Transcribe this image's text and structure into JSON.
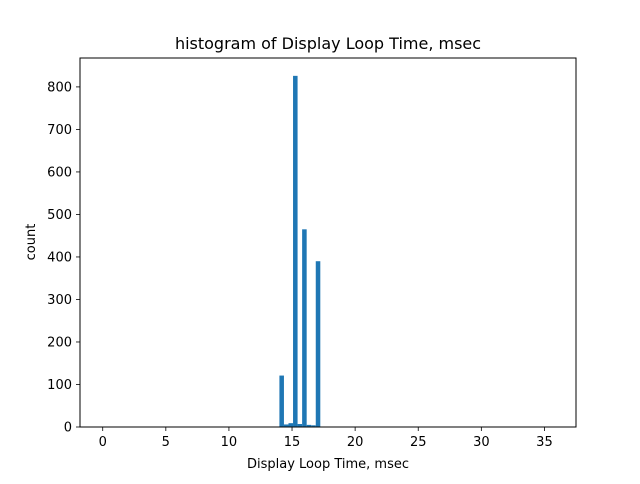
{
  "chart_data": {
    "type": "bar",
    "title": "histogram of Display Loop Time, msec",
    "xlabel": "Display Loop Time, msec",
    "ylabel": "count",
    "xlim": [
      -1.8,
      37.5
    ],
    "ylim": [
      0,
      868
    ],
    "xticks": [
      0,
      5,
      10,
      15,
      20,
      25,
      30,
      35
    ],
    "yticks": [
      0,
      100,
      200,
      300,
      400,
      500,
      600,
      700,
      800
    ],
    "grid": false,
    "bin_width": 0.36,
    "bars": [
      {
        "x": 14.0,
        "value": 121
      },
      {
        "x": 14.36,
        "value": 6
      },
      {
        "x": 14.72,
        "value": 9
      },
      {
        "x": 15.08,
        "value": 826
      },
      {
        "x": 15.44,
        "value": 7
      },
      {
        "x": 15.8,
        "value": 465
      },
      {
        "x": 16.16,
        "value": 5
      },
      {
        "x": 16.52,
        "value": 4
      },
      {
        "x": 16.88,
        "value": 390
      }
    ],
    "color": "#1f77b4"
  }
}
